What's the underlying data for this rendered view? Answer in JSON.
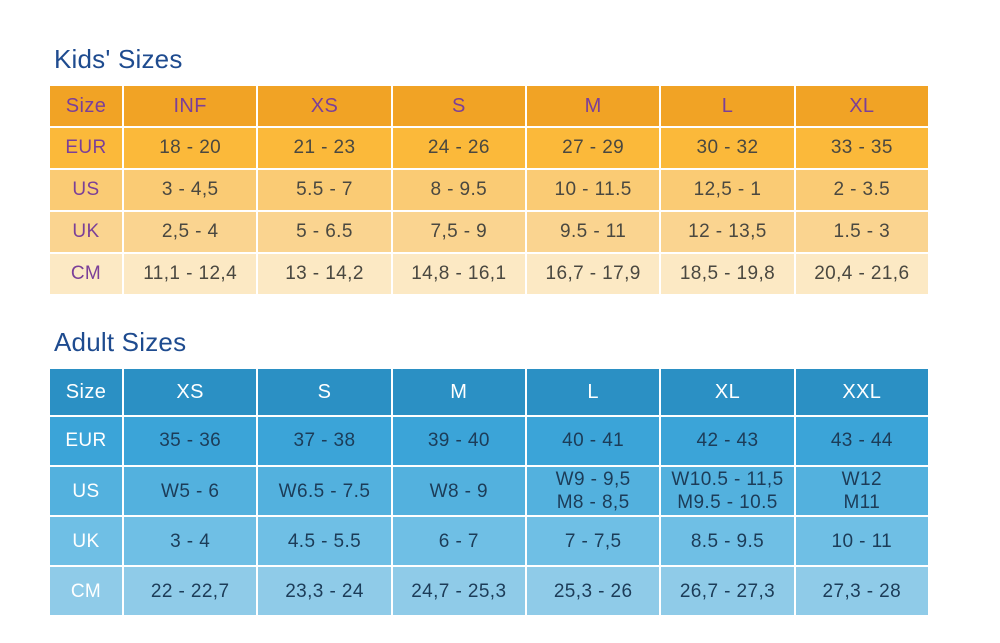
{
  "page": {
    "background": "#FFFFFF",
    "title_color": "#1E4B8F"
  },
  "chart_data": [
    {
      "type": "table",
      "title": "Kids' Sizes",
      "header": [
        "Size",
        "INF",
        "XS",
        "S",
        "M",
        "L",
        "XL"
      ],
      "rows": [
        {
          "label": "EUR",
          "values": [
            "18 - 20",
            "21 - 23",
            "24 - 26",
            "27 - 29",
            "30 - 32",
            "33 - 35"
          ]
        },
        {
          "label": "US",
          "values": [
            "3 - 4,5",
            "5.5 - 7",
            "8 - 9.5",
            "10 - 11.5",
            "12,5 - 1",
            "2 - 3.5"
          ]
        },
        {
          "label": "UK",
          "values": [
            "2,5 - 4",
            "5 - 6.5",
            "7,5 - 9",
            "9.5 - 11",
            "12 - 13,5",
            "1.5 - 3"
          ]
        },
        {
          "label": "CM",
          "values": [
            "11,1 - 12,4",
            "13 - 14,2",
            "14,8 - 16,1",
            "16,7 - 17,9",
            "18,5 - 19,8",
            "20,4 - 21,6"
          ]
        }
      ],
      "colors": {
        "header_bg": "#F1A325",
        "row_bgs": [
          "#FBB93A",
          "#FACB74",
          "#FAD490",
          "#FCE9C4"
        ],
        "header_text": "#7B3F98",
        "label_text": "#7B3F98",
        "value_text": "#4A4840"
      }
    },
    {
      "type": "table",
      "title": "Adult Sizes",
      "header": [
        "Size",
        "XS",
        "S",
        "M",
        "L",
        "XL",
        "XXL"
      ],
      "rows": [
        {
          "label": "EUR",
          "values": [
            "35 - 36",
            "37 - 38",
            "39 - 40",
            "40 - 41",
            "42 - 43",
            "43 - 44"
          ]
        },
        {
          "label": "US",
          "values": [
            "W5 - 6",
            "W6.5 - 7.5",
            "W8 - 9",
            "W9 - 9,5\nM8 - 8,5",
            "W10.5 - 11,5\nM9.5 - 10.5",
            "W12\nM11"
          ]
        },
        {
          "label": "UK",
          "values": [
            "3 - 4",
            "4.5 - 5.5",
            "6 - 7",
            "7 - 7,5",
            "8.5 - 9.5",
            "10 - 11"
          ]
        },
        {
          "label": "CM",
          "values": [
            "22 - 22,7",
            "23,3 - 24",
            "24,7 - 25,3",
            "25,3 - 26",
            "26,7 - 27,3",
            "27,3 - 28"
          ]
        }
      ],
      "colors": {
        "header_bg": "#2B90C4",
        "row_bgs": [
          "#3BA4D8",
          "#53B1DE",
          "#6FBFE5",
          "#8FCBE8"
        ],
        "header_text": "#FFFFFF",
        "label_text": "#FFFFFF",
        "value_text": "#1C3C58"
      }
    }
  ]
}
